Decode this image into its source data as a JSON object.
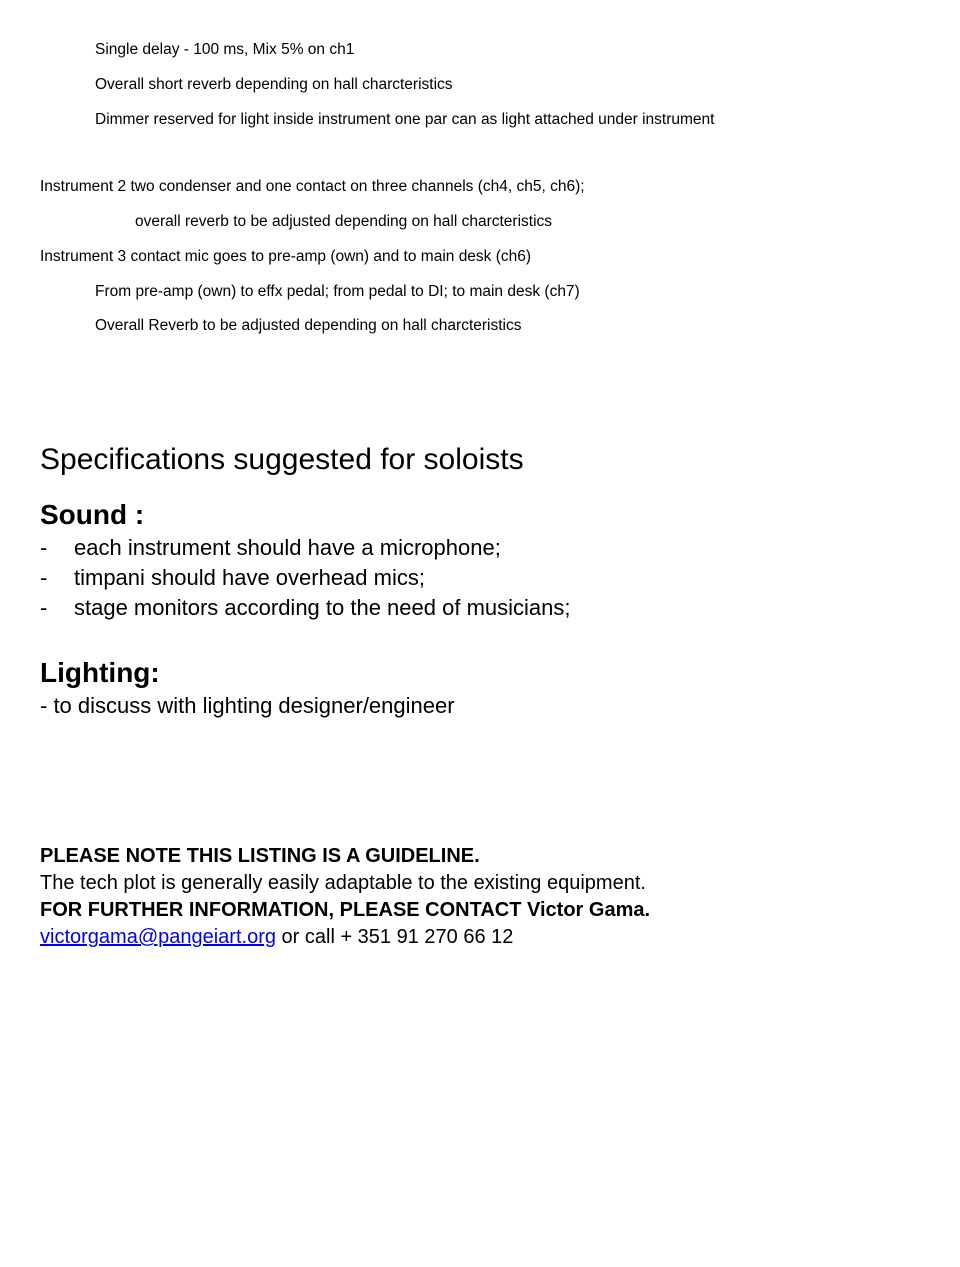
{
  "para1": {
    "l1": "Single delay - 100 ms,  Mix 5% on ch1",
    "l2": "Overall short reverb depending on hall charcteristics",
    "l3": "Dimmer reserved for light inside instrument one par can as light attached under instrument"
  },
  "instr2": {
    "l1": "Instrument 2 two condenser and one contact on three channels (ch4, ch5, ch6);",
    "l2": "overall reverb to be adjusted depending on hall charcteristics"
  },
  "instr3": {
    "l1": "Instrument 3 contact mic goes to pre-amp (own) and to main desk  (ch6)",
    "l2": "From pre-amp (own) to effx pedal; from pedal to DI; to main desk (ch7)",
    "l3": "Overall Reverb to be adjusted depending on hall charcteristics"
  },
  "specs_heading": "Specifications suggested for soloists",
  "sound": {
    "heading": "Sound :",
    "items": [
      "each instrument should have a microphone;",
      "timpani should have overhead mics;",
      "stage monitors according to the need of musicians;"
    ]
  },
  "lighting": {
    "heading": "Lighting:",
    "line": "- to discuss with lighting designer/engineer"
  },
  "note": {
    "l1": "PLEASE NOTE THIS LISTING IS A GUIDELINE.",
    "l2": "The tech plot  is generally easily adaptable to the existing equipment.",
    "l3": "FOR FURTHER INFORMATION, PLEASE CONTACT Victor Gama.",
    "email": "victorgama@pangeiart.org",
    "tail": " or call + 351 91 270 66 12"
  },
  "colors": {
    "text": "#000000",
    "link": "#0000ee",
    "background": "#ffffff"
  }
}
